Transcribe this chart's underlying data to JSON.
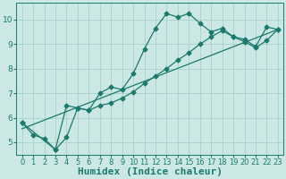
{
  "title": "",
  "xlabel": "Humidex (Indice chaleur)",
  "ylabel": "",
  "background_color": "#cce8e4",
  "grid_color": "#aed4cf",
  "line_color": "#1a7a6e",
  "xlim": [
    -0.5,
    23.5
  ],
  "ylim": [
    4.5,
    10.7
  ],
  "xticks": [
    0,
    1,
    2,
    3,
    4,
    5,
    6,
    7,
    8,
    9,
    10,
    11,
    12,
    13,
    14,
    15,
    16,
    17,
    18,
    19,
    20,
    21,
    22,
    23
  ],
  "yticks": [
    5,
    6,
    7,
    8,
    9,
    10
  ],
  "line1_x": [
    0,
    1,
    2,
    3,
    4,
    5,
    6,
    7,
    8,
    9,
    10,
    11,
    12,
    13,
    14,
    15,
    16,
    17,
    18,
    19,
    20,
    21,
    22,
    23
  ],
  "line1_y": [
    5.8,
    5.3,
    5.15,
    4.7,
    6.5,
    6.4,
    6.3,
    7.0,
    7.25,
    7.15,
    7.8,
    8.8,
    9.65,
    10.25,
    10.1,
    10.25,
    9.85,
    9.5,
    9.65,
    9.3,
    9.2,
    8.9,
    9.7,
    9.6
  ],
  "line2_x": [
    0,
    3,
    4,
    5,
    6,
    7,
    8,
    9,
    10,
    11,
    12,
    13,
    14,
    15,
    16,
    17,
    18,
    19,
    20,
    21,
    22,
    23
  ],
  "line2_y": [
    5.8,
    4.7,
    5.2,
    6.4,
    6.3,
    6.5,
    6.6,
    6.8,
    7.05,
    7.4,
    7.7,
    8.0,
    8.35,
    8.65,
    9.0,
    9.3,
    9.55,
    9.3,
    9.1,
    8.85,
    9.15,
    9.6
  ],
  "line3_x": [
    0,
    23
  ],
  "line3_y": [
    5.55,
    9.6
  ],
  "fontsize_xlabel": 8,
  "fontsize_tick": 6,
  "marker": "D",
  "markersize": 2.5
}
